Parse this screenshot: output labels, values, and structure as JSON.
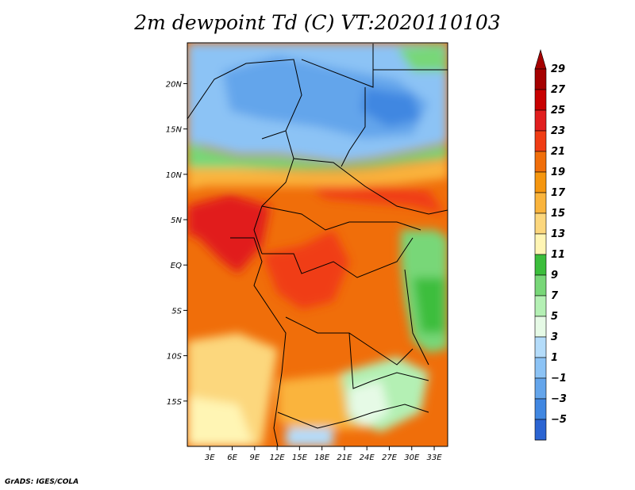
{
  "title": "2m dewpoint Td (C) VT:2020110103",
  "credit": "GrADS: IGES/COLA",
  "map": {
    "lat_range": [
      -20,
      24.5
    ],
    "lon_range": [
      0,
      34.8
    ],
    "lat_ticks": [
      {
        "value": 20,
        "label": "20N"
      },
      {
        "value": 15,
        "label": "15N"
      },
      {
        "value": 10,
        "label": "10N"
      },
      {
        "value": 5,
        "label": "5N"
      },
      {
        "value": 0,
        "label": "EQ"
      },
      {
        "value": -5,
        "label": "5S"
      },
      {
        "value": -10,
        "label": "10S"
      },
      {
        "value": -15,
        "label": "15S"
      }
    ],
    "lon_ticks": [
      {
        "value": 3,
        "label": "3E"
      },
      {
        "value": 6,
        "label": "6E"
      },
      {
        "value": 9,
        "label": "9E"
      },
      {
        "value": 12,
        "label": "12E"
      },
      {
        "value": 15,
        "label": "15E"
      },
      {
        "value": 18,
        "label": "18E"
      },
      {
        "value": 21,
        "label": "21E"
      },
      {
        "value": 24,
        "label": "24E"
      },
      {
        "value": 27,
        "label": "27E"
      },
      {
        "value": 30,
        "label": "30E"
      },
      {
        "value": 33,
        "label": "33E"
      }
    ]
  },
  "colorbar": {
    "levels": [
      {
        "label": "29",
        "color": "#a50000"
      },
      {
        "label": "27",
        "color": "#c80000"
      },
      {
        "label": "25",
        "color": "#e11e1e"
      },
      {
        "label": "23",
        "color": "#f03c14"
      },
      {
        "label": "21",
        "color": "#f06e0a"
      },
      {
        "label": "19",
        "color": "#f5960f"
      },
      {
        "label": "17",
        "color": "#fab43c"
      },
      {
        "label": "15",
        "color": "#fcd77d"
      },
      {
        "label": "13",
        "color": "#fff5b4"
      },
      {
        "label": "11",
        "color": "#3cbe3c"
      },
      {
        "label": "9",
        "color": "#78d778"
      },
      {
        "label": "7",
        "color": "#b4f0b4"
      },
      {
        "label": "5",
        "color": "#e6fae6"
      },
      {
        "label": "3",
        "color": "#b4dcfa"
      },
      {
        "label": "1",
        "color": "#8cc3f5"
      },
      {
        "label": "−1",
        "color": "#64a5eb"
      },
      {
        "label": "−3",
        "color": "#4187e1"
      },
      {
        "label": "−5",
        "color": "#2b64d2"
      }
    ],
    "bottom_color": "#1e46c8"
  }
}
